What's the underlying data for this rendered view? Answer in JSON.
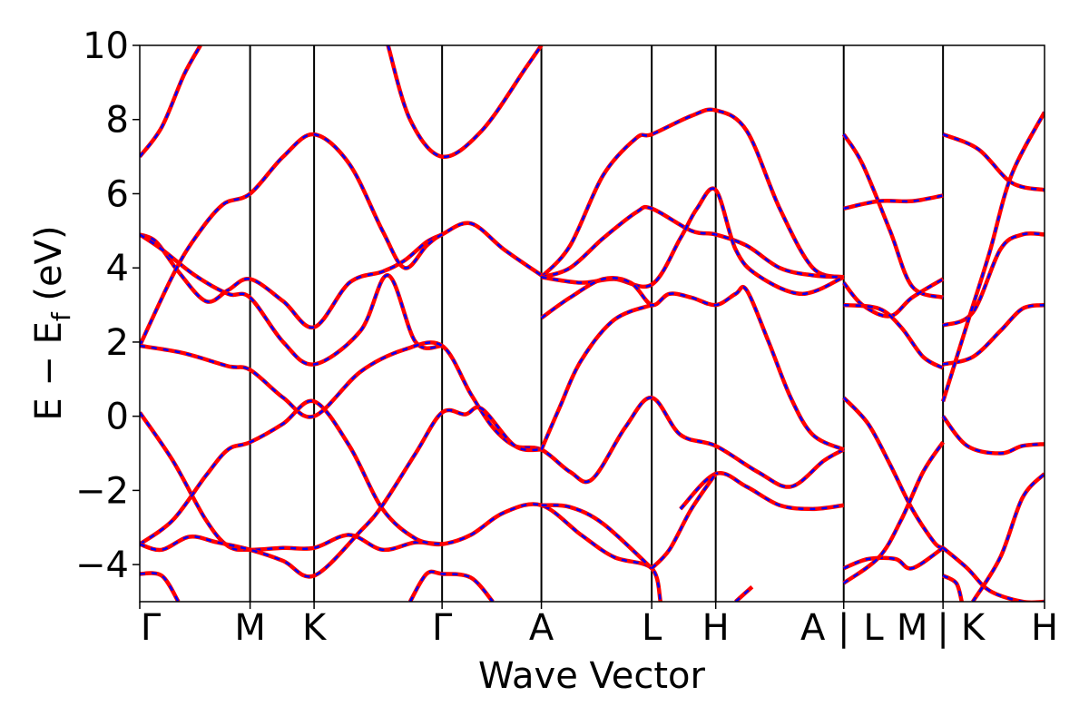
{
  "chart_data": {
    "type": "line",
    "title": "",
    "xlabel": "Wave Vector",
    "ylabel_main": "E − E",
    "ylabel_sub": "f",
    "ylabel_unit": " (eV)",
    "ylim": [
      -5,
      10
    ],
    "yticks": [
      10,
      8,
      6,
      4,
      2,
      0,
      -2,
      -4
    ],
    "ytick_labels": [
      "10",
      "8",
      "6",
      "4",
      "2",
      "0",
      "−2",
      "−4"
    ],
    "xlim": [
      0,
      8.2
    ],
    "kpoints": [
      {
        "x": 0.0,
        "label": "Γ"
      },
      {
        "x": 1.0,
        "label": "M"
      },
      {
        "x": 1.58,
        "label": "K"
      },
      {
        "x": 2.74,
        "label": "Γ"
      },
      {
        "x": 3.64,
        "label": "A"
      },
      {
        "x": 4.64,
        "label": "L"
      },
      {
        "x": 5.22,
        "label": "H"
      },
      {
        "x": 6.38,
        "label": "A | L"
      },
      {
        "x": 7.28,
        "label": "M | K"
      },
      {
        "x": 8.2,
        "label": "H"
      }
    ],
    "tick_labels": [
      {
        "x": 0.0,
        "text": "Γ"
      },
      {
        "x": 1.0,
        "text": "M"
      },
      {
        "x": 1.58,
        "text": "K"
      },
      {
        "x": 2.74,
        "text": "Γ"
      },
      {
        "x": 3.64,
        "text": "A"
      },
      {
        "x": 4.64,
        "text": "L"
      },
      {
        "x": 5.22,
        "text": "H"
      },
      {
        "x": 6.1,
        "text": "A"
      },
      {
        "x": 6.38,
        "text": "|"
      },
      {
        "x": 6.65,
        "text": "L"
      },
      {
        "x": 7.0,
        "text": "M"
      },
      {
        "x": 7.28,
        "text": "|"
      },
      {
        "x": 7.55,
        "text": "K"
      },
      {
        "x": 8.2,
        "text": "H"
      }
    ],
    "colors": {
      "band_solid": "#ff0000",
      "band_dashed": "#0000ff",
      "axis": "#000000"
    },
    "series": [
      {
        "points": [
          [
            0.0,
            7.0
          ],
          [
            0.2,
            7.8
          ],
          [
            0.4,
            9.2
          ],
          [
            0.55,
            10.0
          ]
        ]
      },
      {
        "points": [
          [
            0.0,
            4.9
          ],
          [
            0.15,
            4.7
          ],
          [
            0.35,
            3.9
          ],
          [
            0.6,
            3.1
          ],
          [
            0.8,
            3.4
          ],
          [
            1.0,
            3.7
          ],
          [
            1.3,
            3.1
          ],
          [
            1.58,
            2.4
          ],
          [
            1.9,
            3.6
          ],
          [
            2.2,
            3.9
          ],
          [
            2.4,
            4.2
          ],
          [
            2.6,
            4.7
          ],
          [
            2.74,
            4.9
          ]
        ]
      },
      {
        "points": [
          [
            0.0,
            4.9
          ],
          [
            0.2,
            4.5
          ],
          [
            0.5,
            3.8
          ],
          [
            0.8,
            3.3
          ],
          [
            1.0,
            3.2
          ],
          [
            1.3,
            2.0
          ],
          [
            1.58,
            1.4
          ],
          [
            2.0,
            2.3
          ],
          [
            2.25,
            3.8
          ],
          [
            2.5,
            2.0
          ],
          [
            2.74,
            1.9
          ]
        ]
      },
      {
        "points": [
          [
            0.0,
            1.9
          ],
          [
            0.3,
            3.8
          ],
          [
            0.5,
            4.8
          ],
          [
            0.75,
            5.7
          ],
          [
            1.0,
            6.0
          ],
          [
            1.3,
            7.0
          ],
          [
            1.58,
            7.6
          ],
          [
            1.9,
            6.8
          ],
          [
            2.2,
            5.0
          ],
          [
            2.4,
            4.0
          ],
          [
            2.6,
            4.6
          ],
          [
            2.74,
            4.9
          ],
          [
            3.0,
            5.2
          ],
          [
            3.3,
            4.5
          ],
          [
            3.64,
            3.8
          ]
        ]
      },
      {
        "points": [
          [
            0.0,
            1.9
          ],
          [
            0.4,
            1.7
          ],
          [
            0.8,
            1.35
          ],
          [
            1.0,
            1.25
          ],
          [
            1.3,
            0.5
          ],
          [
            1.58,
            0.0
          ],
          [
            2.0,
            1.2
          ],
          [
            2.4,
            1.8
          ],
          [
            2.74,
            1.9
          ],
          [
            3.0,
            0.6
          ],
          [
            3.2,
            -0.3
          ],
          [
            3.4,
            -0.8
          ],
          [
            3.64,
            -0.9
          ],
          [
            3.9,
            -1.5
          ],
          [
            4.1,
            -1.7
          ],
          [
            4.4,
            -0.3
          ],
          [
            4.64,
            0.5
          ],
          [
            4.9,
            -0.5
          ],
          [
            5.22,
            -0.8
          ],
          [
            5.6,
            -1.5
          ],
          [
            5.9,
            -1.9
          ],
          [
            6.2,
            -1.2
          ],
          [
            6.38,
            -0.9
          ]
        ]
      },
      {
        "points": [
          [
            0.0,
            0.1
          ],
          [
            0.3,
            -1.2
          ],
          [
            0.6,
            -2.8
          ],
          [
            0.8,
            -3.5
          ],
          [
            1.0,
            -3.6
          ],
          [
            1.3,
            -3.55
          ],
          [
            1.58,
            -3.55
          ],
          [
            1.9,
            -3.2
          ],
          [
            2.2,
            -3.6
          ],
          [
            2.5,
            -3.4
          ],
          [
            2.74,
            -3.45
          ],
          [
            3.0,
            -3.2
          ],
          [
            3.3,
            -2.6
          ],
          [
            3.64,
            -2.4
          ],
          [
            4.0,
            -3.2
          ],
          [
            4.3,
            -3.8
          ],
          [
            4.64,
            -4.1
          ],
          [
            4.72,
            -5.0
          ]
        ]
      },
      {
        "points": [
          [
            0.0,
            -3.45
          ],
          [
            0.3,
            -2.8
          ],
          [
            0.6,
            -1.6
          ],
          [
            0.8,
            -0.9
          ],
          [
            1.0,
            -0.7
          ],
          [
            1.3,
            -0.2
          ],
          [
            1.58,
            0.4
          ],
          [
            1.9,
            -0.8
          ],
          [
            2.2,
            -2.5
          ],
          [
            2.5,
            -3.3
          ],
          [
            2.74,
            -3.45
          ]
        ]
      },
      {
        "points": [
          [
            0.0,
            -3.45
          ],
          [
            0.2,
            -3.6
          ],
          [
            0.45,
            -3.25
          ],
          [
            0.7,
            -3.4
          ],
          [
            1.0,
            -3.6
          ],
          [
            1.3,
            -3.9
          ],
          [
            1.58,
            -4.3
          ],
          [
            2.0,
            -3.1
          ],
          [
            2.2,
            -2.4
          ],
          [
            2.5,
            -1.0
          ],
          [
            2.74,
            0.1
          ],
          [
            2.95,
            0.05
          ],
          [
            3.1,
            0.2
          ],
          [
            3.4,
            -0.8
          ],
          [
            3.64,
            -0.9
          ]
        ]
      },
      {
        "points": [
          [
            0.0,
            -4.25
          ],
          [
            0.2,
            -4.3
          ],
          [
            0.35,
            -5.0
          ]
        ]
      },
      {
        "points": [
          [
            2.45,
            -5.0
          ],
          [
            2.6,
            -4.25
          ],
          [
            2.74,
            -4.25
          ],
          [
            3.0,
            -4.35
          ],
          [
            3.2,
            -5.0
          ]
        ]
      },
      {
        "points": [
          [
            2.25,
            10.0
          ],
          [
            2.45,
            8.0
          ],
          [
            2.74,
            7.0
          ],
          [
            3.1,
            7.7
          ],
          [
            3.5,
            9.4
          ],
          [
            3.64,
            10.0
          ]
        ]
      },
      {
        "points": [
          [
            3.64,
            3.75
          ],
          [
            3.9,
            4.6
          ],
          [
            4.2,
            6.5
          ],
          [
            4.5,
            7.5
          ],
          [
            4.64,
            7.6
          ],
          [
            5.0,
            8.1
          ],
          [
            5.22,
            8.25
          ],
          [
            5.5,
            7.7
          ],
          [
            5.8,
            5.6
          ],
          [
            6.1,
            4.0
          ],
          [
            6.38,
            3.75
          ]
        ]
      },
      {
        "points": [
          [
            3.64,
            3.75
          ],
          [
            3.9,
            4.0
          ],
          [
            4.2,
            4.8
          ],
          [
            4.5,
            5.5
          ],
          [
            4.64,
            5.6
          ],
          [
            5.0,
            5.0
          ],
          [
            5.22,
            4.9
          ],
          [
            5.5,
            4.6
          ],
          [
            5.8,
            4.0
          ],
          [
            6.1,
            3.8
          ],
          [
            6.38,
            3.75
          ]
        ]
      },
      {
        "points": [
          [
            3.64,
            3.75
          ],
          [
            4.0,
            3.6
          ],
          [
            4.3,
            3.7
          ],
          [
            4.64,
            3.55
          ],
          [
            4.9,
            4.8
          ],
          [
            5.05,
            5.6
          ],
          [
            5.22,
            6.1
          ],
          [
            5.4,
            4.5
          ],
          [
            5.6,
            3.8
          ],
          [
            6.0,
            3.3
          ],
          [
            6.38,
            3.75
          ]
        ]
      },
      {
        "points": [
          [
            3.64,
            2.65
          ],
          [
            3.9,
            3.2
          ],
          [
            4.2,
            3.7
          ],
          [
            4.45,
            3.6
          ],
          [
            4.64,
            3.0
          ],
          [
            4.8,
            3.3
          ],
          [
            5.0,
            3.2
          ],
          [
            5.22,
            3.0
          ],
          [
            5.4,
            3.3
          ],
          [
            5.5,
            3.4
          ],
          [
            5.7,
            2.0
          ],
          [
            5.9,
            0.5
          ],
          [
            6.1,
            -0.5
          ],
          [
            6.38,
            -0.9
          ]
        ]
      },
      {
        "points": [
          [
            3.64,
            -0.9
          ],
          [
            3.8,
            0.2
          ],
          [
            4.0,
            1.5
          ],
          [
            4.3,
            2.6
          ],
          [
            4.64,
            3.0
          ]
        ]
      },
      {
        "points": [
          [
            3.64,
            -2.4
          ],
          [
            3.9,
            -2.45
          ],
          [
            4.2,
            -2.9
          ],
          [
            4.64,
            -4.1
          ]
        ]
      },
      {
        "points": [
          [
            4.9,
            -2.5
          ],
          [
            5.22,
            -1.55
          ],
          [
            5.5,
            -1.9
          ],
          [
            5.8,
            -2.4
          ],
          [
            6.1,
            -2.5
          ],
          [
            6.38,
            -2.4
          ]
        ]
      },
      {
        "points": [
          [
            4.64,
            -4.1
          ],
          [
            4.8,
            -3.6
          ],
          [
            5.0,
            -2.5
          ],
          [
            5.22,
            -1.55
          ]
        ]
      },
      {
        "points": [
          [
            5.4,
            -5.0
          ],
          [
            5.55,
            -4.6
          ]
        ]
      },
      {
        "points": [
          [
            6.38,
            7.6
          ],
          [
            6.55,
            6.8
          ],
          [
            6.8,
            5.0
          ],
          [
            7.0,
            3.5
          ],
          [
            7.28,
            3.2
          ]
        ]
      },
      {
        "points": [
          [
            6.38,
            5.6
          ],
          [
            6.7,
            5.8
          ],
          [
            7.0,
            5.8
          ],
          [
            7.28,
            5.95
          ]
        ]
      },
      {
        "points": [
          [
            6.38,
            3.6
          ],
          [
            6.55,
            3.0
          ],
          [
            6.8,
            2.7
          ],
          [
            7.0,
            3.2
          ],
          [
            7.28,
            3.7
          ]
        ]
      },
      {
        "points": [
          [
            6.38,
            3.0
          ],
          [
            6.7,
            2.9
          ],
          [
            6.9,
            2.4
          ],
          [
            7.1,
            1.6
          ],
          [
            7.28,
            1.3
          ]
        ]
      },
      {
        "points": [
          [
            6.38,
            0.5
          ],
          [
            6.6,
            -0.2
          ],
          [
            6.8,
            -1.3
          ],
          [
            7.0,
            -2.5
          ],
          [
            7.2,
            -3.4
          ],
          [
            7.28,
            -3.55
          ]
        ]
      },
      {
        "points": [
          [
            6.38,
            -4.1
          ],
          [
            6.6,
            -3.85
          ],
          [
            6.85,
            -3.85
          ],
          [
            7.0,
            -4.1
          ],
          [
            7.28,
            -3.55
          ]
        ]
      },
      {
        "points": [
          [
            6.38,
            -4.5
          ],
          [
            6.7,
            -3.8
          ],
          [
            6.9,
            -2.8
          ],
          [
            7.1,
            -1.5
          ],
          [
            7.28,
            -0.7
          ]
        ]
      },
      {
        "points": [
          [
            7.28,
            7.6
          ],
          [
            7.6,
            7.2
          ],
          [
            7.9,
            6.3
          ],
          [
            8.2,
            6.1
          ]
        ]
      },
      {
        "points": [
          [
            7.28,
            2.45
          ],
          [
            7.55,
            2.8
          ],
          [
            7.8,
            4.5
          ],
          [
            8.0,
            4.9
          ],
          [
            8.2,
            4.9
          ]
        ]
      },
      {
        "points": [
          [
            7.28,
            1.4
          ],
          [
            7.55,
            1.6
          ],
          [
            7.8,
            2.3
          ],
          [
            8.0,
            2.9
          ],
          [
            8.2,
            3.0
          ]
        ]
      },
      {
        "points": [
          [
            7.28,
            0.4
          ],
          [
            7.5,
            2.5
          ],
          [
            7.7,
            4.4
          ],
          [
            7.9,
            6.5
          ],
          [
            8.2,
            8.2
          ]
        ]
      },
      {
        "points": [
          [
            7.28,
            0.0
          ],
          [
            7.5,
            -0.8
          ],
          [
            7.8,
            -1.0
          ],
          [
            8.0,
            -0.8
          ],
          [
            8.2,
            -0.75
          ]
        ]
      },
      {
        "points": [
          [
            7.28,
            -3.55
          ],
          [
            7.5,
            -4.1
          ],
          [
            7.7,
            -4.7
          ],
          [
            8.0,
            -5.0
          ],
          [
            8.2,
            -5.0
          ]
        ]
      },
      {
        "points": [
          [
            7.28,
            -4.3
          ],
          [
            7.4,
            -4.5
          ],
          [
            7.45,
            -5.0
          ]
        ]
      },
      {
        "points": [
          [
            7.55,
            -5.0
          ],
          [
            7.8,
            -3.8
          ],
          [
            8.0,
            -2.2
          ],
          [
            8.2,
            -1.55
          ]
        ]
      }
    ]
  }
}
